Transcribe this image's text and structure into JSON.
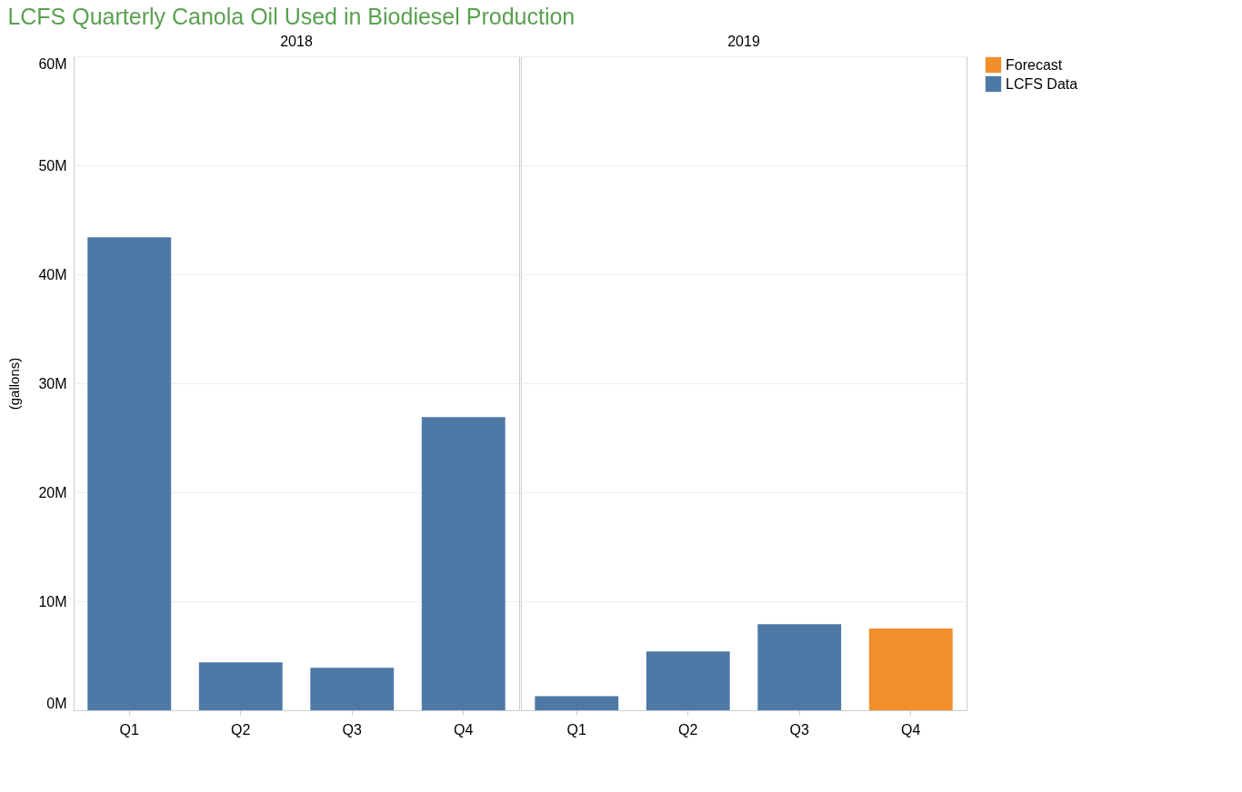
{
  "chart_data": [
    {
      "type": "bar",
      "title": "LCFS Quarterly Canola Oil Used in Biodiesel Production",
      "xlabel": "2018",
      "ylabel": "(gallons)",
      "categories": [
        "Q1",
        "Q2",
        "Q3",
        "Q4"
      ],
      "series": [
        {
          "color": "#4e79a7",
          "values": [
            43.4,
            4.4,
            3.9,
            26.9
          ]
        }
      ],
      "ylim": [
        0,
        60
      ],
      "yticks": [
        {
          "value": 0,
          "label": "0M"
        },
        {
          "value": 10,
          "label": "10M"
        },
        {
          "value": 20,
          "label": "20M"
        },
        {
          "value": 30,
          "label": "30M"
        },
        {
          "value": 40,
          "label": "40M"
        },
        {
          "value": 50,
          "label": "50M"
        },
        {
          "value": 60,
          "label": "60M"
        }
      ],
      "grid": "y"
    },
    {
      "type": "bar",
      "xlabel": "2019",
      "categories": [
        "Q1",
        "Q2",
        "Q3",
        "Q4"
      ],
      "series": [
        {
          "name": "Forecast",
          "color": "#f28e2b",
          "values": [
            null,
            null,
            null,
            7.5
          ]
        },
        {
          "name": "LCFS Data",
          "color": "#4e79a7",
          "values": [
            1.3,
            5.4,
            7.9,
            null
          ]
        }
      ],
      "ylim": [
        0,
        60
      ],
      "yticks": [
        0,
        10,
        20,
        30,
        40,
        50,
        60
      ],
      "grid": "y",
      "tick_labels": "x",
      "legend": "top right"
    }
  ]
}
